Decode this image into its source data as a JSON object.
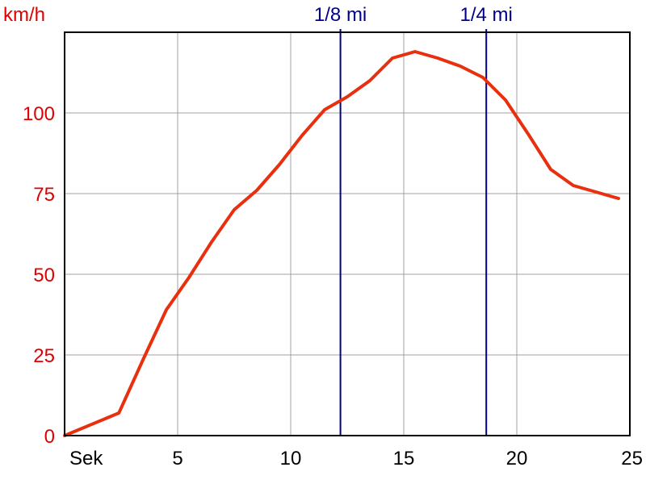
{
  "chart_data": {
    "type": "line",
    "ylabel": "km/h",
    "xlabel": "Sek",
    "xlim": [
      0,
      25
    ],
    "ylim": [
      0,
      125
    ],
    "xticks": [
      5,
      10,
      15,
      20,
      25
    ],
    "yticks": [
      0,
      25,
      50,
      75,
      100
    ],
    "grid": true,
    "series": [
      {
        "color": "#e8300f",
        "x": [
          0,
          2.4,
          3.5,
          4.5,
          5.5,
          6.5,
          7.5,
          8.5,
          9.5,
          10.5,
          11.5,
          12.5,
          13.5,
          14.5,
          15.5,
          16.5,
          17.5,
          18.5,
          19.5,
          20.5,
          21.5,
          22.5,
          23.5,
          24.5
        ],
        "y": [
          0,
          7,
          24,
          39,
          49,
          60,
          70,
          76,
          84,
          93,
          101,
          105,
          110,
          117,
          119,
          117,
          114.5,
          111,
          104,
          93.5,
          82.5,
          77.5,
          75.5,
          73.5
        ]
      }
    ],
    "markers": [
      {
        "label": "1/8 mi",
        "x": 12.2,
        "color": "#00008b"
      },
      {
        "label": "1/4 mi",
        "x": 18.65,
        "color": "#00008b"
      }
    ]
  }
}
